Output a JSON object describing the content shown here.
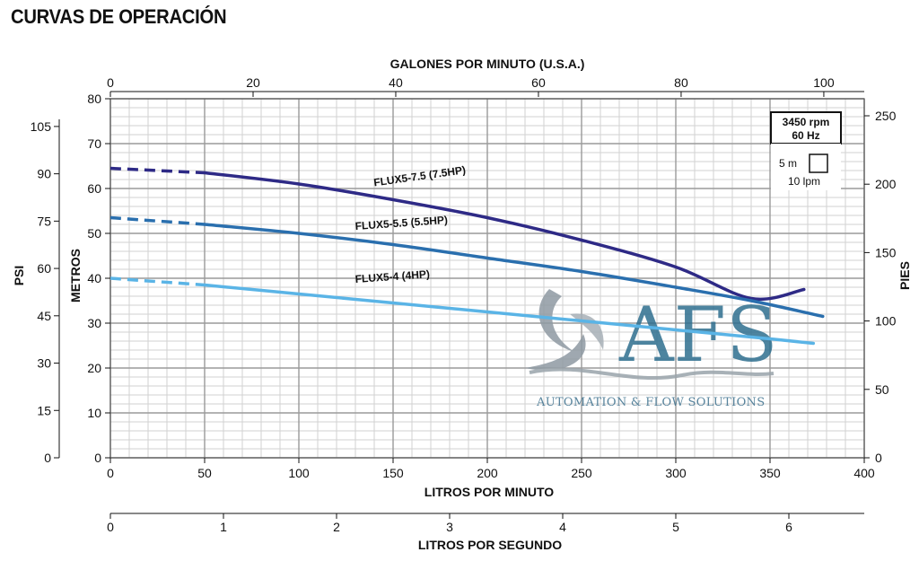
{
  "page": {
    "title": "CURVAS DE OPERACIÓN"
  },
  "chart_data": {
    "type": "line",
    "title": "",
    "xlabel": "LITROS POR MINUTO",
    "xlim": [
      0,
      400
    ],
    "x_ticks": [
      0,
      50,
      100,
      150,
      200,
      250,
      300,
      350,
      400
    ],
    "ylabel": "METROS",
    "ylim": [
      0,
      80
    ],
    "y_ticks": [
      0,
      10,
      20,
      30,
      40,
      50,
      60,
      70,
      80
    ],
    "grid": true,
    "secondary_axes": {
      "top": {
        "label": "GALONES POR MINUTO (U.S.A.)",
        "ticks": [
          0,
          20,
          40,
          60,
          80,
          100
        ]
      },
      "left": {
        "label": "PSI",
        "ticks": [
          0,
          15,
          30,
          45,
          60,
          75,
          90,
          105
        ]
      },
      "right": {
        "label": "PIES",
        "ticks": [
          0,
          50,
          100,
          150,
          200,
          250
        ]
      },
      "bottom": {
        "label": "LITROS POR SEGUNDO",
        "ticks": [
          0,
          1,
          2,
          3,
          4,
          5,
          6
        ]
      }
    },
    "legend_box": {
      "speed": "3450 rpm",
      "frequency": "60 Hz",
      "scale_y": "5 m",
      "scale_x": "10 lpm"
    },
    "series": [
      {
        "name": "FLUX5-7.5 (7.5HP)",
        "color": "#2e2a86",
        "dashed": {
          "x": [
            0,
            50
          ],
          "y": [
            64.5,
            63.5
          ]
        },
        "x": [
          50,
          100,
          150,
          200,
          250,
          300,
          340,
          368
        ],
        "y": [
          63.5,
          61,
          57.5,
          53.5,
          48.5,
          42.5,
          35.5,
          37.5
        ]
      },
      {
        "name": "FLUX5-5.5 (5.5HP)",
        "color": "#2a6fae",
        "dashed": {
          "x": [
            0,
            50
          ],
          "y": [
            53.5,
            52
          ]
        },
        "x": [
          50,
          100,
          150,
          200,
          250,
          300,
          340,
          378
        ],
        "y": [
          52,
          50,
          47.5,
          44.5,
          41.5,
          38,
          35,
          31.5
        ]
      },
      {
        "name": "FLUX5-4 (4HP)",
        "color": "#5ab4e6",
        "dashed": {
          "x": [
            0,
            50
          ],
          "y": [
            40,
            38.5
          ]
        },
        "x": [
          50,
          100,
          150,
          200,
          250,
          300,
          350,
          373
        ],
        "y": [
          38.5,
          36.5,
          34.5,
          32.5,
          30.5,
          28.5,
          26.5,
          25.5
        ]
      }
    ]
  },
  "watermark": {
    "big_text": "AFS",
    "subtitle": "AUTOMATION & FLOW SOLUTIONS"
  }
}
